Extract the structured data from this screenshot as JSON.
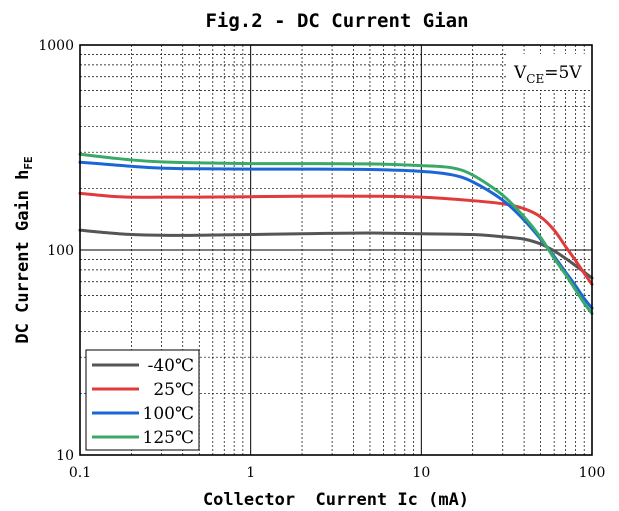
{
  "chart_data": {
    "type": "line",
    "title": "Fig.2 - DC Current Gian",
    "xlabel": "Collector  Current Ic (mA)",
    "ylabel": {
      "main": "DC Current Gain h",
      "sub": "FE"
    },
    "xscale": "log",
    "yscale": "log",
    "xlim": [
      0.1,
      100
    ],
    "ylim": [
      10,
      1000
    ],
    "xticks": [
      "0.1",
      "1",
      "10",
      "100"
    ],
    "yticks": [
      "10",
      "100",
      "1000"
    ],
    "grid": true,
    "legend_position": "bottom-left",
    "annotation": {
      "main": "V",
      "sub": "CE",
      "rest": "=5V"
    },
    "series": [
      {
        "name": "-40℃",
        "color": "#555555",
        "x": [
          0.1,
          0.15,
          0.2,
          0.3,
          0.5,
          1,
          2,
          5,
          10,
          20,
          30,
          40,
          50,
          60,
          70,
          80,
          90,
          100
        ],
        "y": [
          125,
          121,
          119,
          118,
          118,
          119,
          120,
          121,
          120,
          119,
          116,
          113,
          107,
          99,
          91,
          84,
          78,
          73
        ]
      },
      {
        "name": "25℃",
        "color": "#e03a3a",
        "x": [
          0.1,
          0.15,
          0.2,
          0.3,
          0.5,
          1,
          2,
          5,
          10,
          20,
          30,
          40,
          50,
          60,
          70,
          80,
          90,
          100
        ],
        "y": [
          189,
          183,
          181,
          181,
          181,
          182,
          183,
          183,
          181,
          174,
          168,
          159,
          145,
          125,
          104,
          89,
          77,
          68
        ]
      },
      {
        "name": "100℃",
        "color": "#1a66d6",
        "x": [
          0.1,
          0.15,
          0.2,
          0.3,
          0.5,
          1,
          2,
          5,
          10,
          15,
          20,
          30,
          40,
          50,
          60,
          70,
          80,
          90,
          100
        ],
        "y": [
          268,
          261,
          256,
          251,
          249,
          248,
          248,
          247,
          242,
          233,
          215,
          175,
          140,
          113,
          93,
          78,
          67,
          58,
          52
        ]
      },
      {
        "name": "125℃",
        "color": "#3aa867",
        "x": [
          0.1,
          0.15,
          0.2,
          0.3,
          0.5,
          1,
          2,
          5,
          10,
          15,
          20,
          30,
          40,
          50,
          60,
          70,
          80,
          90,
          100
        ],
        "y": [
          293,
          282,
          275,
          269,
          266,
          264,
          264,
          263,
          258,
          252,
          232,
          185,
          145,
          115,
          91,
          76,
          64,
          55,
          49
        ]
      }
    ]
  }
}
